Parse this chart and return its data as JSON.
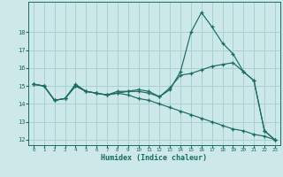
{
  "title": "",
  "xlabel": "Humidex (Indice chaleur)",
  "bg_color": "#cce8e8",
  "line_color": "#1a6b60",
  "grid_color": "#aad0d0",
  "x_data": [
    0,
    1,
    2,
    3,
    4,
    5,
    6,
    7,
    8,
    9,
    10,
    11,
    12,
    13,
    14,
    15,
    16,
    17,
    18,
    19,
    20,
    21,
    22,
    23
  ],
  "line1": [
    15.1,
    15.0,
    14.2,
    14.3,
    15.1,
    14.7,
    14.6,
    14.5,
    14.6,
    14.7,
    14.8,
    14.7,
    14.4,
    14.8,
    15.8,
    18.0,
    19.1,
    18.3,
    17.4,
    16.8,
    15.8,
    15.3,
    12.5,
    12.0
  ],
  "line2": [
    15.1,
    15.0,
    14.2,
    14.3,
    15.0,
    14.7,
    14.6,
    14.5,
    14.7,
    14.7,
    14.7,
    14.6,
    14.4,
    14.9,
    15.6,
    15.7,
    15.9,
    16.1,
    16.2,
    16.3,
    15.8,
    15.3,
    12.5,
    12.0
  ],
  "line3": [
    15.1,
    15.0,
    14.2,
    14.3,
    15.0,
    14.7,
    14.6,
    14.5,
    14.6,
    14.5,
    14.3,
    14.2,
    14.0,
    13.8,
    13.6,
    13.4,
    13.2,
    13.0,
    12.8,
    12.6,
    12.5,
    12.3,
    12.2,
    12.0
  ],
  "ylim": [
    11.7,
    19.7
  ],
  "yticks": [
    12,
    13,
    14,
    15,
    16,
    17,
    18
  ],
  "xticks": [
    0,
    1,
    2,
    3,
    4,
    5,
    6,
    7,
    8,
    9,
    10,
    11,
    12,
    13,
    14,
    15,
    16,
    17,
    18,
    19,
    20,
    21,
    22,
    23
  ]
}
